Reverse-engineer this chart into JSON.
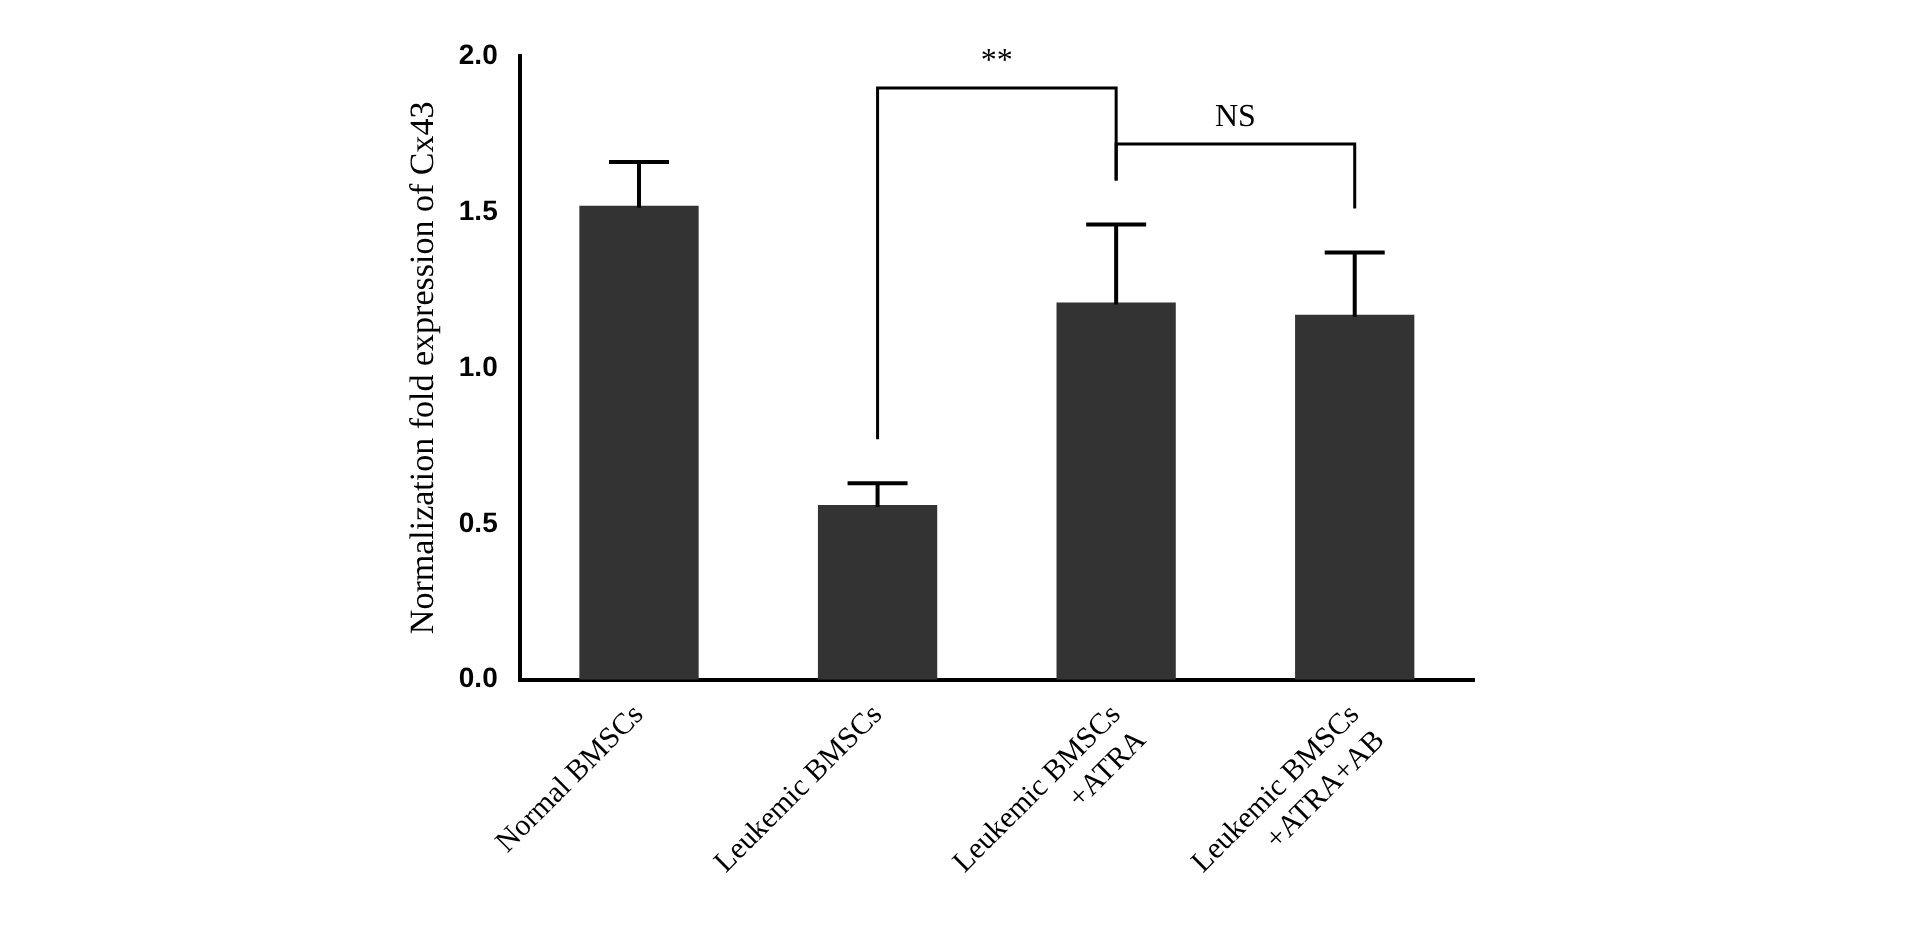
{
  "chart_data": {
    "type": "bar",
    "ylabel": "Normalization fold expression of Cx43",
    "categories": [
      "Normal BMSCs",
      "Leukemic BMSCs",
      "Leukemic BMSCs\n+ATRA",
      "Leukemic BMSCs\n+ATRA+AB"
    ],
    "values": [
      1.52,
      0.56,
      1.21,
      1.17
    ],
    "errors": [
      [
        1.52,
        1.66
      ],
      [
        0.56,
        0.63
      ],
      [
        1.21,
        1.46
      ],
      [
        1.17,
        1.37
      ]
    ],
    "color": "#333333",
    "ylim": [
      0,
      2.0
    ],
    "yticks": [
      {
        "value": 0,
        "label": "0.0"
      },
      {
        "value": 0.5,
        "label": "0.5"
      },
      {
        "value": 1,
        "label": "1.0"
      },
      {
        "value": 1.5,
        "label": "1.5"
      },
      {
        "value": 2,
        "label": "2.0"
      }
    ],
    "annotations": [
      "**",
      "NS"
    ],
    "grid": false,
    "legend": false
  }
}
